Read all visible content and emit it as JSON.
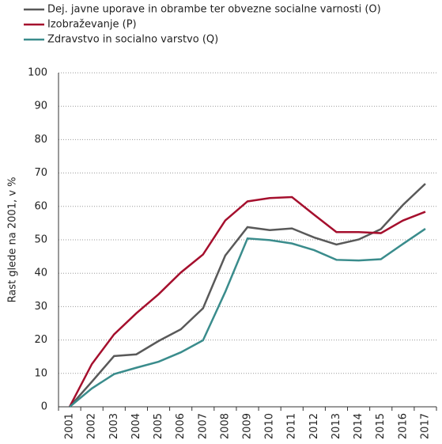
{
  "chart_data": {
    "type": "line",
    "ylabel": "Rast glede na 2001, v %",
    "categories": [
      "2001",
      "2002",
      "2003",
      "2004",
      "2005",
      "2006",
      "2007",
      "2008",
      "2009",
      "2010",
      "2011",
      "2012",
      "2013",
      "2014",
      "2015",
      "2016",
      "2017"
    ],
    "series": [
      {
        "name": "Dej. javne uporave in obrambe ter obvezne socialne varnosti (O)",
        "color": "#595959",
        "values": [
          0,
          7.5,
          15.2,
          15.7,
          19.7,
          23.2,
          29.5,
          45.3,
          53.8,
          52.9,
          53.4,
          50.7,
          48.6,
          50.1,
          53.2,
          60.5,
          66.8
        ]
      },
      {
        "name": "Izobraževanje (P)",
        "color": "#a50f2d",
        "values": [
          0,
          12.8,
          21.7,
          28.0,
          33.7,
          40.2,
          45.6,
          55.8,
          61.5,
          62.5,
          62.8,
          57.5,
          52.3,
          52.3,
          52.0,
          55.8,
          58.4
        ]
      },
      {
        "name": "Zdravstvo in socialno varstvo (Q)",
        "color": "#3a8c8c",
        "values": [
          0,
          5.5,
          9.8,
          11.7,
          13.5,
          16.3,
          19.9,
          34.4,
          50.4,
          49.9,
          48.9,
          46.9,
          44.0,
          43.8,
          44.2,
          48.8,
          53.3
        ]
      }
    ],
    "ylim": [
      0,
      100
    ],
    "yticks": [
      0,
      10,
      20,
      30,
      40,
      50,
      60,
      70,
      80,
      90,
      100
    ],
    "grid": true
  }
}
